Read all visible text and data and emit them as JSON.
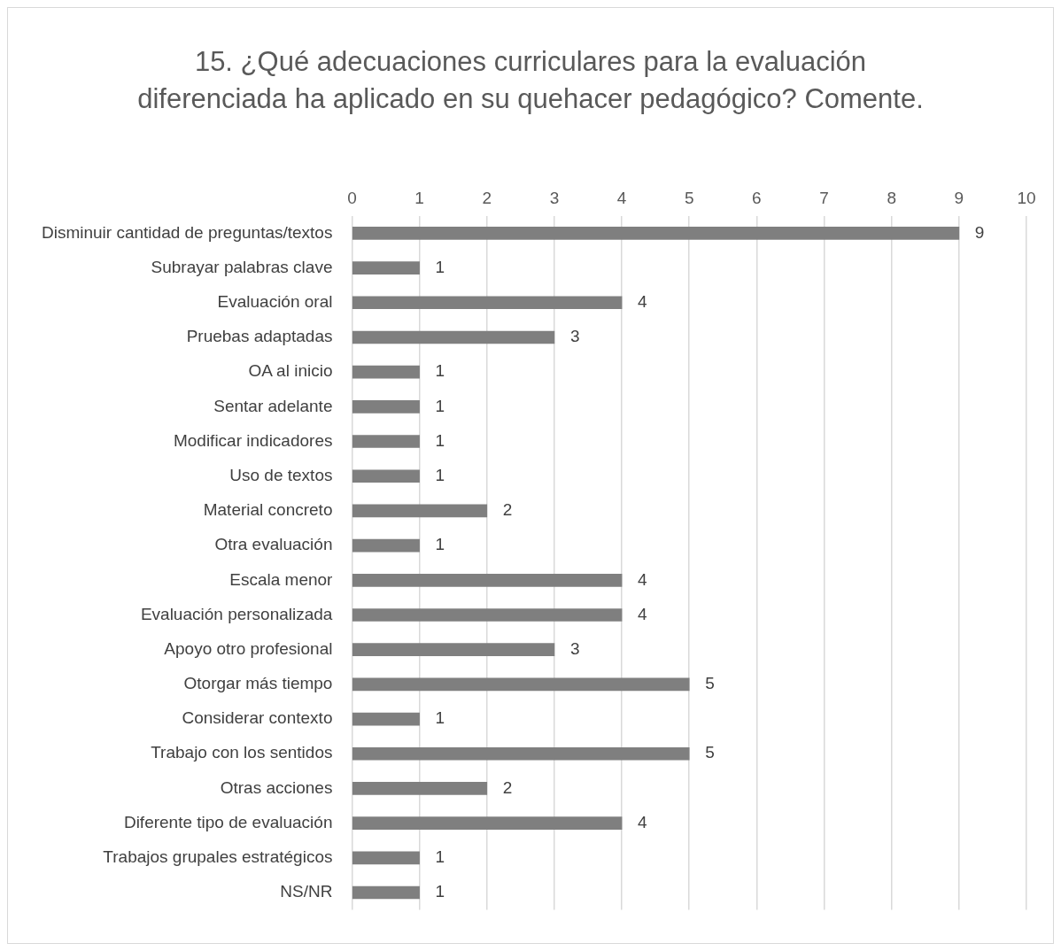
{
  "chart_data": {
    "type": "bar",
    "orientation": "horizontal",
    "title": "15. ¿Qué adecuaciones curriculares para la evaluación diferenciada ha aplicado en su quehacer pedagógico? Comente.",
    "categories": [
      "Disminuir cantidad de preguntas/textos",
      "Subrayar palabras clave",
      "Evaluación oral",
      "Pruebas adaptadas",
      "OA al inicio",
      "Sentar adelante",
      "Modificar indicadores",
      "Uso de textos",
      "Material concreto",
      "Otra evaluación",
      "Escala menor",
      "Evaluación personalizada",
      "Apoyo otro profesional",
      "Otorgar más tiempo",
      "Considerar contexto",
      "Trabajo con los sentidos",
      "Otras acciones",
      "Diferente tipo de evaluación",
      "Trabajos grupales estratégicos",
      "NS/NR"
    ],
    "values": [
      9,
      1,
      4,
      3,
      1,
      1,
      1,
      1,
      2,
      1,
      4,
      4,
      3,
      5,
      1,
      5,
      2,
      4,
      1,
      1
    ],
    "color": "#7f7f7f",
    "xlim": [
      0,
      10
    ],
    "xticks": [
      0,
      1,
      2,
      3,
      4,
      5,
      6,
      7,
      8,
      9,
      10
    ],
    "grid": "x",
    "data_labels": true
  }
}
